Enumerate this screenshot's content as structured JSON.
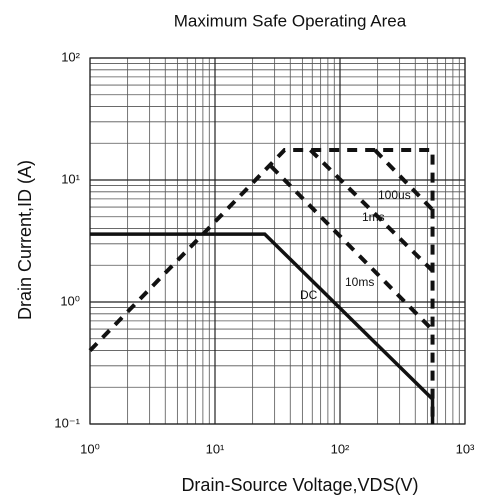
{
  "chart_data": {
    "type": "line",
    "title": "Maximum Safe Operating Area",
    "x_label": "Drain-Source Voltage,VDS(V)",
    "y_label": "Drain Current,ID (A)",
    "x_scale": "log",
    "y_scale": "log",
    "grid": true,
    "xlim": [
      1,
      1000
    ],
    "ylim": [
      0.1,
      100
    ],
    "xticks": [
      {
        "value": 1,
        "label": "10⁰"
      },
      {
        "value": 10,
        "label": "10¹"
      },
      {
        "value": 100,
        "label": "10²"
      },
      {
        "value": 1000,
        "label": "10³"
      }
    ],
    "yticks": [
      {
        "value": 0.1,
        "label": "10⁻¹"
      },
      {
        "value": 1,
        "label": "10⁰"
      },
      {
        "value": 10,
        "label": "10¹"
      },
      {
        "value": 100,
        "label": "10²"
      }
    ],
    "series": [
      {
        "color": "#111",
        "dash": true,
        "x": [
          1,
          36,
          550,
          550
        ],
        "values": [
          0.4,
          17.6,
          17.6,
          0.1
        ]
      },
      {
        "name": "100us",
        "color": "#111",
        "dash": true,
        "x": [
          190,
          550
        ],
        "values": [
          17.6,
          5.7
        ]
      },
      {
        "name": "1ms",
        "color": "#111",
        "dash": true,
        "x": [
          58,
          550
        ],
        "values": [
          17.6,
          1.8
        ]
      },
      {
        "name": "10ms",
        "color": "#111",
        "dash": true,
        "x": [
          28,
          550
        ],
        "values": [
          13,
          0.59
        ]
      },
      {
        "name": "DC",
        "color": "#111",
        "dash": false,
        "x": [
          1,
          25,
          550,
          550
        ],
        "values": [
          3.6,
          3.6,
          0.16,
          0.1
        ]
      }
    ]
  }
}
